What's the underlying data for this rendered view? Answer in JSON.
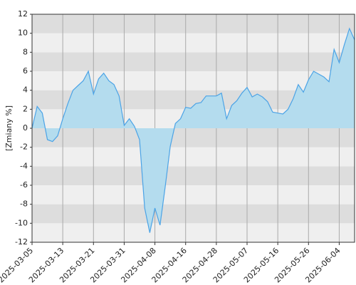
{
  "chart_data": {
    "type": "area",
    "y_label": "[Zmiany %]",
    "categories": [
      "2025-03-05",
      null,
      null,
      null,
      null,
      null,
      "2025-03-13",
      null,
      null,
      null,
      null,
      null,
      "2025-03-21",
      null,
      null,
      null,
      null,
      null,
      "2025-03-31",
      null,
      null,
      null,
      null,
      null,
      "2025-04-08",
      null,
      null,
      null,
      null,
      null,
      "2025-04-16",
      null,
      null,
      null,
      null,
      null,
      "2025-04-28",
      null,
      null,
      null,
      null,
      null,
      "2025-05-07",
      null,
      null,
      null,
      null,
      null,
      "2025-05-16",
      null,
      null,
      null,
      null,
      null,
      "2025-05-26",
      null,
      null,
      null,
      null,
      null,
      "2025-06-04",
      null,
      null,
      null
    ],
    "values": [
      0,
      2.3,
      1.6,
      -1.2,
      -1.4,
      -0.8,
      1.0,
      2.6,
      4.0,
      4.5,
      5.0,
      6.0,
      3.6,
      5.2,
      5.8,
      5.0,
      4.6,
      3.4,
      0.3,
      1.0,
      0.2,
      -1.2,
      -8.4,
      -11.0,
      -8.4,
      -10.2,
      -6.2,
      -1.9,
      0.5,
      1.0,
      2.2,
      2.1,
      2.6,
      2.7,
      3.4,
      3.4,
      3.4,
      3.7,
      1.0,
      2.4,
      2.9,
      3.7,
      4.3,
      3.3,
      3.6,
      3.3,
      2.8,
      1.7,
      1.6,
      1.5,
      2.0,
      3.1,
      4.6,
      3.8,
      5.1,
      6.0,
      5.7,
      5.4,
      4.9,
      8.3,
      6.9,
      8.8,
      10.5,
      9.3
    ],
    "line_color": "#4ba3e6",
    "fill_color": "#b4dcee",
    "ylim": [
      -12,
      12
    ],
    "yticks": [
      -12,
      -10,
      -8,
      -6,
      -4,
      -2,
      0,
      2,
      4,
      6,
      8,
      10,
      12
    ],
    "grid": true
  }
}
